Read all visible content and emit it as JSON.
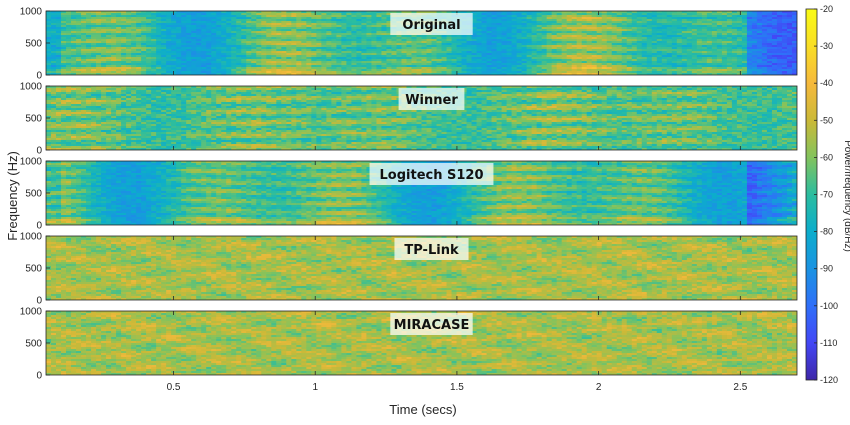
{
  "chart_data": {
    "type": "heatmap",
    "xlabel": "Time (secs)",
    "ylabel": "Frequency (Hz)",
    "x_ticks": [
      "0.5",
      "1",
      "1.5",
      "2",
      "2.5"
    ],
    "x_tick_values": [
      0.5,
      1,
      1.5,
      2,
      2.5
    ],
    "xlim": [
      0.05,
      2.7
    ],
    "y_ticks": [
      "0",
      "500",
      "1000"
    ],
    "y_tick_values": [
      0,
      500,
      1000
    ],
    "ylim": [
      0,
      1000
    ],
    "panels": [
      {
        "label": "Original",
        "style": "speech"
      },
      {
        "label": "Winner",
        "style": "mixed"
      },
      {
        "label": "Logitech S120",
        "style": "speech"
      },
      {
        "label": "TP-Link",
        "style": "noise"
      },
      {
        "label": "MIRACASE",
        "style": "noise"
      }
    ],
    "colorbar": {
      "title": "Power/frequency (dB/Hz)",
      "range": [
        -120,
        -20
      ],
      "ticks": [
        "-20",
        "-30",
        "-40",
        "-50",
        "-60",
        "-70",
        "-80",
        "-90",
        "-100",
        "-110",
        "-120"
      ],
      "tick_values": [
        -20,
        -30,
        -40,
        -50,
        -60,
        -70,
        -80,
        -90,
        -100,
        -110,
        -120
      ]
    },
    "colormap": [
      "#3e26a8",
      "#4347f5",
      "#2f6ff9",
      "#1a93e2",
      "#0cadcc",
      "#2bbd9f",
      "#83c35d",
      "#cbb938",
      "#f6b93c",
      "#f9de25",
      "#f9fb15"
    ]
  }
}
